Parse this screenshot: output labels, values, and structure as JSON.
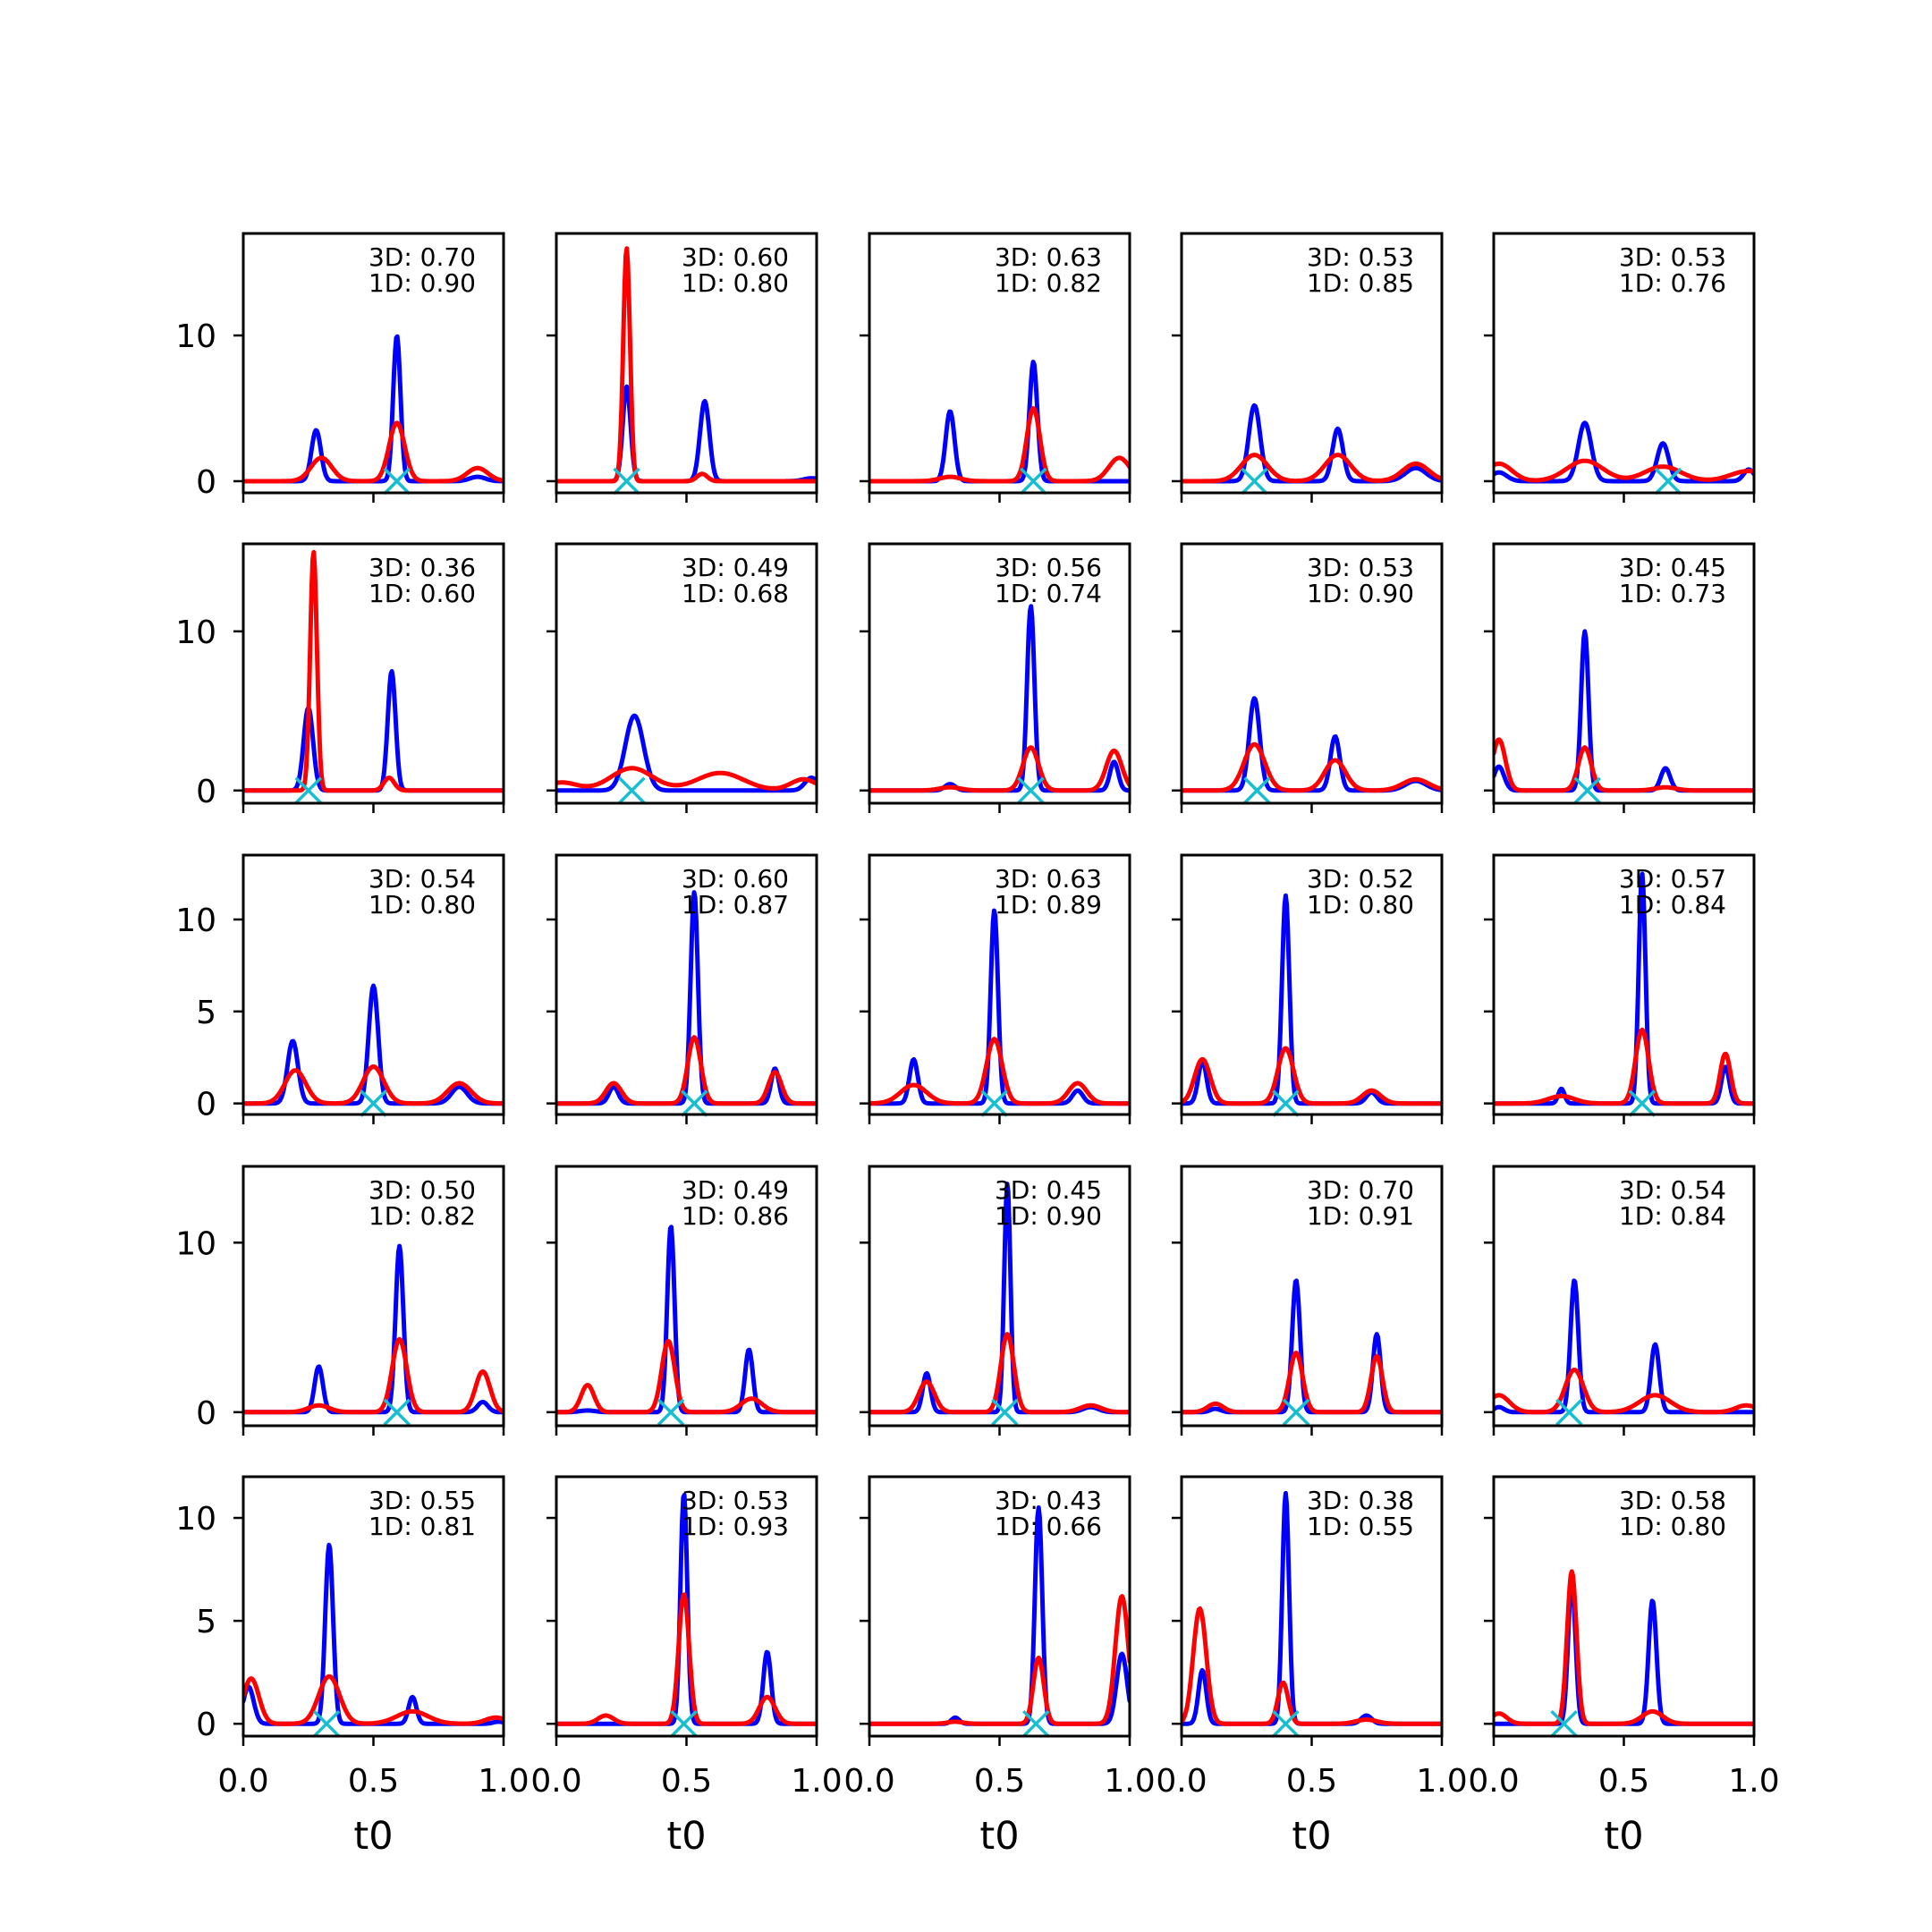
{
  "colors": {
    "series_3d": "#0000ff",
    "series_1d": "#ff0000",
    "marker": "#17becf"
  },
  "chart_data": {
    "type": "line",
    "layout": "5x5 grid of small multiples, shared x axis per column, shared y axis per row",
    "xlabel": "t0",
    "xlim": [
      0,
      1
    ],
    "xticks": [
      "0.0",
      "0.5",
      "1.0"
    ],
    "rows": [
      {
        "ylim": [
          -0.8,
          17
        ],
        "yticks": [
          0,
          10
        ]
      },
      {
        "ylim": [
          -0.8,
          15.5
        ],
        "yticks": [
          0,
          10
        ]
      },
      {
        "ylim": [
          -0.6,
          13.5
        ],
        "yticks": [
          0,
          5,
          10
        ]
      },
      {
        "ylim": [
          -0.8,
          14.5
        ],
        "yticks": [
          0,
          10
        ]
      },
      {
        "ylim": [
          -0.6,
          12
        ],
        "yticks": [
          0,
          5,
          10
        ]
      }
    ],
    "panels": [
      {
        "score_3d": "3D: 0.70",
        "score_1d": "1D: 0.90",
        "marker_x": 0.59,
        "series_3d": [
          [
            0.28,
            3.5,
            0.018
          ],
          [
            0.59,
            10,
            0.014
          ],
          [
            0.9,
            0.3,
            0.03
          ]
        ],
        "series_1d": [
          [
            0.3,
            1.6,
            0.04
          ],
          [
            0.59,
            4.0,
            0.03
          ],
          [
            0.9,
            0.9,
            0.04
          ]
        ]
      },
      {
        "score_3d": "3D: 0.60",
        "score_1d": "1D: 0.80",
        "marker_x": 0.27,
        "series_3d": [
          [
            0.27,
            6.5,
            0.015
          ],
          [
            0.57,
            5.5,
            0.018
          ],
          [
            0.98,
            0.2,
            0.03
          ]
        ],
        "series_1d": [
          [
            0.27,
            16,
            0.013
          ],
          [
            0.56,
            0.5,
            0.02
          ]
        ]
      },
      {
        "score_3d": "3D: 0.63",
        "score_1d": "1D: 0.82",
        "marker_x": 0.63,
        "series_3d": [
          [
            0.31,
            4.8,
            0.017
          ],
          [
            0.63,
            8.2,
            0.015
          ]
        ],
        "series_1d": [
          [
            0.31,
            0.3,
            0.04
          ],
          [
            0.63,
            5.0,
            0.025
          ],
          [
            0.96,
            1.6,
            0.04
          ]
        ]
      },
      {
        "score_3d": "3D: 0.53",
        "score_1d": "1D: 0.85",
        "marker_x": 0.28,
        "series_3d": [
          [
            0.28,
            5.2,
            0.022
          ],
          [
            0.6,
            3.6,
            0.02
          ],
          [
            0.9,
            0.9,
            0.04
          ]
        ],
        "series_1d": [
          [
            0.28,
            1.8,
            0.05
          ],
          [
            0.6,
            1.8,
            0.05
          ],
          [
            0.9,
            1.2,
            0.05
          ]
        ]
      },
      {
        "score_3d": "3D: 0.53",
        "score_1d": "1D: 0.76",
        "marker_x": 0.67,
        "series_3d": [
          [
            0.02,
            0.6,
            0.03
          ],
          [
            0.35,
            4.0,
            0.025
          ],
          [
            0.65,
            2.6,
            0.022
          ],
          [
            0.98,
            0.8,
            0.02
          ]
        ],
        "series_1d": [
          [
            0.02,
            1.2,
            0.05
          ],
          [
            0.35,
            1.4,
            0.07
          ],
          [
            0.65,
            1.0,
            0.07
          ],
          [
            0.98,
            0.7,
            0.07
          ]
        ]
      },
      {
        "score_3d": "3D: 0.36",
        "score_1d": "1D: 0.60",
        "marker_x": 0.25,
        "series_3d": [
          [
            0.25,
            5.2,
            0.018
          ],
          [
            0.57,
            7.5,
            0.015
          ]
        ],
        "series_1d": [
          [
            0.27,
            15,
            0.013
          ],
          [
            0.56,
            0.8,
            0.02
          ]
        ]
      },
      {
        "score_3d": "3D: 0.49",
        "score_1d": "1D: 0.68",
        "marker_x": 0.29,
        "series_3d": [
          [
            0.3,
            4.7,
            0.035
          ],
          [
            0.98,
            0.8,
            0.025
          ]
        ],
        "series_1d": [
          [
            0.02,
            0.5,
            0.06
          ],
          [
            0.29,
            1.4,
            0.08
          ],
          [
            0.63,
            1.1,
            0.09
          ],
          [
            0.95,
            0.7,
            0.05
          ]
        ]
      },
      {
        "score_3d": "3D: 0.56",
        "score_1d": "1D: 0.74",
        "marker_x": 0.62,
        "series_3d": [
          [
            0.31,
            0.4,
            0.02
          ],
          [
            0.62,
            11.6,
            0.014
          ],
          [
            0.94,
            1.8,
            0.016
          ]
        ],
        "series_1d": [
          [
            0.31,
            0.2,
            0.04
          ],
          [
            0.62,
            2.7,
            0.03
          ],
          [
            0.94,
            2.5,
            0.03
          ]
        ]
      },
      {
        "score_3d": "3D: 0.53",
        "score_1d": "1D: 0.90",
        "marker_x": 0.29,
        "series_3d": [
          [
            0.28,
            5.8,
            0.02
          ],
          [
            0.59,
            3.4,
            0.018
          ],
          [
            0.9,
            0.6,
            0.04
          ]
        ],
        "series_1d": [
          [
            0.28,
            2.9,
            0.04
          ],
          [
            0.59,
            1.9,
            0.04
          ],
          [
            0.9,
            0.7,
            0.05
          ]
        ]
      },
      {
        "score_3d": "3D: 0.45",
        "score_1d": "1D: 0.73",
        "marker_x": 0.36,
        "series_3d": [
          [
            0.02,
            1.5,
            0.02
          ],
          [
            0.35,
            10,
            0.014
          ],
          [
            0.66,
            1.4,
            0.018
          ]
        ],
        "series_1d": [
          [
            0.02,
            3.2,
            0.025
          ],
          [
            0.35,
            2.7,
            0.025
          ],
          [
            0.66,
            0.2,
            0.04
          ]
        ]
      },
      {
        "score_3d": "3D: 0.54",
        "score_1d": "1D: 0.80",
        "marker_x": 0.5,
        "series_3d": [
          [
            0.19,
            3.4,
            0.02
          ],
          [
            0.5,
            6.4,
            0.018
          ],
          [
            0.83,
            0.9,
            0.03
          ]
        ],
        "series_1d": [
          [
            0.2,
            1.8,
            0.04
          ],
          [
            0.5,
            2.0,
            0.04
          ],
          [
            0.83,
            1.1,
            0.045
          ]
        ]
      },
      {
        "score_3d": "3D: 0.60",
        "score_1d": "1D: 0.87",
        "marker_x": 0.53,
        "series_3d": [
          [
            0.22,
            0.9,
            0.018
          ],
          [
            0.53,
            11.5,
            0.014
          ],
          [
            0.84,
            1.9,
            0.015
          ]
        ],
        "series_1d": [
          [
            0.22,
            1.1,
            0.03
          ],
          [
            0.53,
            3.6,
            0.025
          ],
          [
            0.84,
            1.7,
            0.025
          ]
        ]
      },
      {
        "score_3d": "3D: 0.63",
        "score_1d": "1D: 0.89",
        "marker_x": 0.48,
        "series_3d": [
          [
            0.17,
            2.4,
            0.016
          ],
          [
            0.48,
            10.5,
            0.014
          ],
          [
            0.8,
            0.7,
            0.02
          ]
        ],
        "series_1d": [
          [
            0.17,
            1.0,
            0.05
          ],
          [
            0.48,
            3.5,
            0.03
          ],
          [
            0.8,
            1.1,
            0.035
          ]
        ]
      },
      {
        "score_3d": "3D: 0.52",
        "score_1d": "1D: 0.80",
        "marker_x": 0.4,
        "series_3d": [
          [
            0.08,
            2.3,
            0.016
          ],
          [
            0.4,
            11.3,
            0.014
          ],
          [
            0.73,
            0.6,
            0.02
          ]
        ],
        "series_1d": [
          [
            0.08,
            2.4,
            0.03
          ],
          [
            0.4,
            3.0,
            0.03
          ],
          [
            0.73,
            0.7,
            0.035
          ]
        ]
      },
      {
        "score_3d": "3D: 0.57",
        "score_1d": "1D: 0.84",
        "marker_x": 0.57,
        "series_3d": [
          [
            0.26,
            0.8,
            0.012
          ],
          [
            0.57,
            12.5,
            0.013
          ],
          [
            0.89,
            2.0,
            0.015
          ]
        ],
        "series_1d": [
          [
            0.26,
            0.4,
            0.05
          ],
          [
            0.57,
            4.0,
            0.025
          ],
          [
            0.89,
            2.7,
            0.02
          ]
        ]
      },
      {
        "score_3d": "3D: 0.50",
        "score_1d": "1D: 0.82",
        "marker_x": 0.59,
        "series_3d": [
          [
            0.29,
            2.7,
            0.016
          ],
          [
            0.6,
            9.8,
            0.015
          ],
          [
            0.92,
            0.6,
            0.02
          ]
        ],
        "series_1d": [
          [
            0.29,
            0.4,
            0.04
          ],
          [
            0.6,
            4.3,
            0.028
          ],
          [
            0.92,
            2.4,
            0.028
          ]
        ]
      },
      {
        "score_3d": "3D: 0.49",
        "score_1d": "1D: 0.86",
        "marker_x": 0.44,
        "series_3d": [
          [
            0.44,
            11,
            0.014
          ],
          [
            0.74,
            3.7,
            0.015
          ],
          [
            0.12,
            0.1,
            0.03
          ]
        ],
        "series_1d": [
          [
            0.12,
            1.6,
            0.025
          ],
          [
            0.43,
            4.2,
            0.025
          ],
          [
            0.75,
            0.8,
            0.04
          ]
        ]
      },
      {
        "score_3d": "3D: 0.45",
        "score_1d": "1D: 0.90",
        "marker_x": 0.52,
        "series_3d": [
          [
            0.22,
            2.3,
            0.015
          ],
          [
            0.53,
            13.5,
            0.012
          ],
          [
            0.85,
            0.3,
            0.03
          ]
        ],
        "series_1d": [
          [
            0.22,
            1.8,
            0.03
          ],
          [
            0.53,
            4.6,
            0.025
          ],
          [
            0.85,
            0.4,
            0.04
          ]
        ]
      },
      {
        "score_3d": "3D: 0.70",
        "score_1d": "1D: 0.91",
        "marker_x": 0.44,
        "series_3d": [
          [
            0.13,
            0.2,
            0.02
          ],
          [
            0.44,
            7.8,
            0.015
          ],
          [
            0.75,
            4.6,
            0.015
          ]
        ],
        "series_1d": [
          [
            0.13,
            0.5,
            0.03
          ],
          [
            0.44,
            3.5,
            0.025
          ],
          [
            0.75,
            3.3,
            0.022
          ]
        ]
      },
      {
        "score_3d": "3D: 0.54",
        "score_1d": "1D: 0.84",
        "marker_x": 0.29,
        "series_3d": [
          [
            0.02,
            0.3,
            0.02
          ],
          [
            0.31,
            7.8,
            0.015
          ],
          [
            0.62,
            4.0,
            0.016
          ]
        ],
        "series_1d": [
          [
            0.02,
            1.0,
            0.04
          ],
          [
            0.31,
            2.5,
            0.035
          ],
          [
            0.62,
            1.0,
            0.06
          ],
          [
            0.97,
            0.4,
            0.04
          ]
        ]
      },
      {
        "score_3d": "3D: 0.55",
        "score_1d": "1D: 0.81",
        "marker_x": 0.32,
        "series_3d": [
          [
            0.02,
            1.8,
            0.02
          ],
          [
            0.33,
            8.7,
            0.015
          ],
          [
            0.65,
            1.3,
            0.015
          ],
          [
            0.98,
            0.1,
            0.02
          ]
        ],
        "series_1d": [
          [
            0.03,
            2.2,
            0.03
          ],
          [
            0.33,
            2.3,
            0.04
          ],
          [
            0.65,
            0.6,
            0.06
          ],
          [
            0.97,
            0.3,
            0.04
          ]
        ]
      },
      {
        "score_3d": "3D: 0.53",
        "score_1d": "1D: 0.93",
        "marker_x": 0.49,
        "series_3d": [
          [
            0.49,
            11.2,
            0.013
          ],
          [
            0.81,
            3.5,
            0.015
          ]
        ],
        "series_1d": [
          [
            0.19,
            0.4,
            0.03
          ],
          [
            0.49,
            6.3,
            0.02
          ],
          [
            0.81,
            1.3,
            0.03
          ]
        ]
      },
      {
        "score_3d": "3D: 0.43",
        "score_1d": "1D: 0.66",
        "marker_x": 0.64,
        "series_3d": [
          [
            0.33,
            0.3,
            0.015
          ],
          [
            0.65,
            10.5,
            0.014
          ],
          [
            0.97,
            3.4,
            0.02
          ]
        ],
        "series_1d": [
          [
            0.33,
            0.1,
            0.03
          ],
          [
            0.65,
            3.2,
            0.02
          ],
          [
            0.97,
            6.2,
            0.025
          ]
        ]
      },
      {
        "score_3d": "3D: 0.38",
        "score_1d": "1D: 0.55",
        "marker_x": 0.4,
        "series_3d": [
          [
            0.08,
            2.6,
            0.015
          ],
          [
            0.4,
            11.2,
            0.013
          ],
          [
            0.71,
            0.4,
            0.02
          ]
        ],
        "series_1d": [
          [
            0.07,
            5.6,
            0.025
          ],
          [
            0.39,
            2.0,
            0.02
          ],
          [
            0.71,
            0.2,
            0.04
          ]
        ]
      },
      {
        "score_3d": "3D: 0.58",
        "score_1d": "1D: 0.80",
        "marker_x": 0.27,
        "series_3d": [
          [
            0.3,
            7.0,
            0.014
          ],
          [
            0.61,
            6.0,
            0.015
          ]
        ],
        "series_1d": [
          [
            0.02,
            0.5,
            0.03
          ],
          [
            0.3,
            7.4,
            0.018
          ],
          [
            0.61,
            0.6,
            0.04
          ]
        ]
      }
    ]
  }
}
